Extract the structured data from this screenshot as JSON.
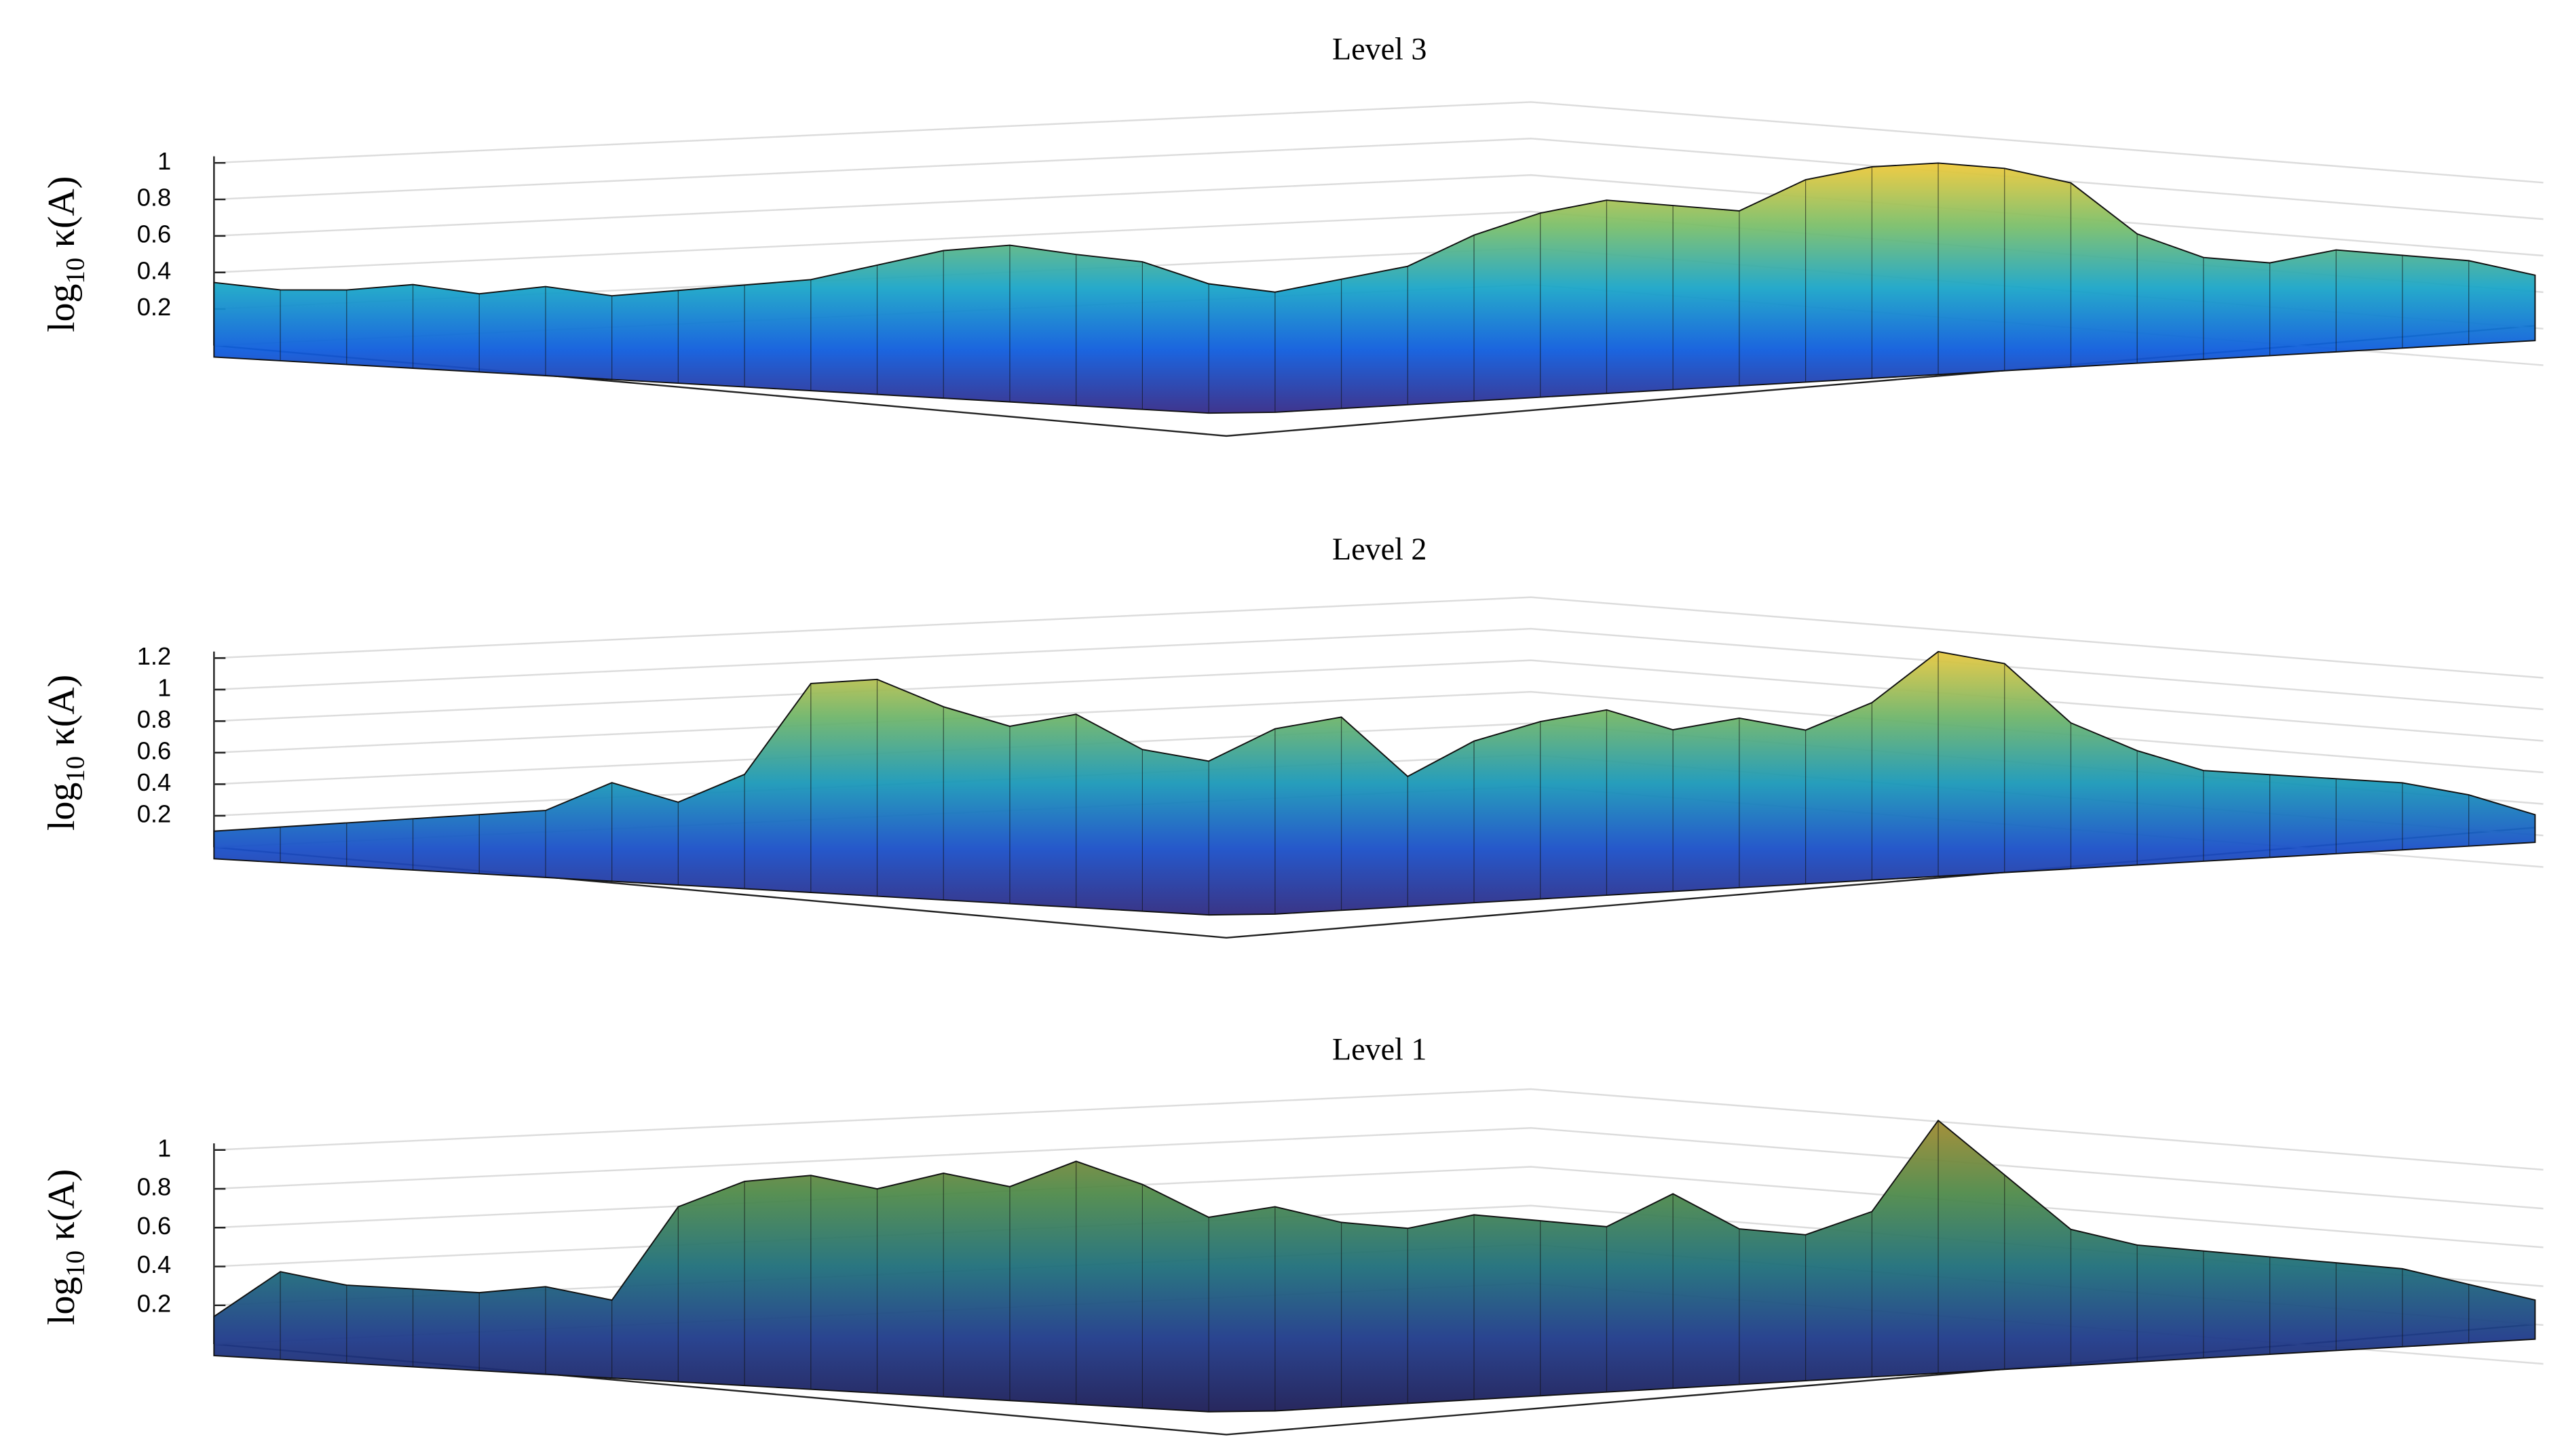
{
  "chart_data": [
    {
      "type": "surface",
      "title": "Level 3",
      "ylabel_parts": [
        "log",
        "10",
        "κ(A)"
      ],
      "ylim": [
        0,
        1
      ],
      "yticks": [
        0.2,
        0.4,
        0.6,
        0.8,
        1
      ],
      "grid": true,
      "colors": [
        "#352a87",
        "#0f5cdd",
        "#1aa5c8",
        "#7bbf6a",
        "#f0c93a"
      ],
      "values": [
        0.3,
        0.28,
        0.3,
        0.35,
        0.32,
        0.38,
        0.35,
        0.4,
        0.45,
        0.5,
        0.6,
        0.7,
        0.75,
        0.72,
        0.7,
        0.6,
        0.55,
        0.6,
        0.65,
        0.8,
        0.9,
        0.95,
        0.9,
        0.85,
        1.0,
        1.05,
        1.05,
        1.0,
        0.9,
        0.6,
        0.45,
        0.4,
        0.45,
        0.4,
        0.35,
        0.25
      ]
    },
    {
      "type": "surface",
      "title": "Level 2",
      "ylabel_parts": [
        "log",
        "10",
        "κ(A)"
      ],
      "ylim": [
        0,
        1.2
      ],
      "yticks": [
        0.2,
        0.4,
        0.6,
        0.8,
        1,
        1.2
      ],
      "grid": true,
      "colors": [
        "#2f2a80",
        "#1a4fc8",
        "#1a98b8",
        "#6fb56a",
        "#e8c840"
      ],
      "values": [
        0.05,
        0.1,
        0.15,
        0.2,
        0.25,
        0.3,
        0.5,
        0.4,
        0.6,
        1.2,
        1.25,
        1.1,
        1.0,
        1.1,
        0.9,
        0.85,
        1.05,
        1.1,
        0.7,
        0.9,
        1.0,
        1.05,
        0.9,
        0.95,
        0.85,
        1.0,
        1.3,
        1.2,
        0.8,
        0.6,
        0.45,
        0.4,
        0.35,
        0.3,
        0.2,
        0.05
      ]
    },
    {
      "type": "surface",
      "title": "Level 1",
      "ylabel_parts": [
        "log",
        "10",
        "κ(A)"
      ],
      "ylim": [
        0,
        1
      ],
      "yticks": [
        0.2,
        0.4,
        0.6,
        0.8,
        1
      ],
      "grid": true,
      "colors": [
        "#1c1c55",
        "#1f3a8a",
        "#1f6f7a",
        "#4f8a4a",
        "#a08a30"
      ],
      "values": [
        0.1,
        0.35,
        0.3,
        0.3,
        0.3,
        0.35,
        0.3,
        0.8,
        0.95,
        1.0,
        0.95,
        1.05,
        1.0,
        1.15,
        1.05,
        0.9,
        0.95,
        0.85,
        0.8,
        0.85,
        0.8,
        0.75,
        0.9,
        0.7,
        0.65,
        0.75,
        1.2,
        0.9,
        0.6,
        0.5,
        0.45,
        0.4,
        0.35,
        0.3,
        0.2,
        0.1
      ]
    }
  ]
}
